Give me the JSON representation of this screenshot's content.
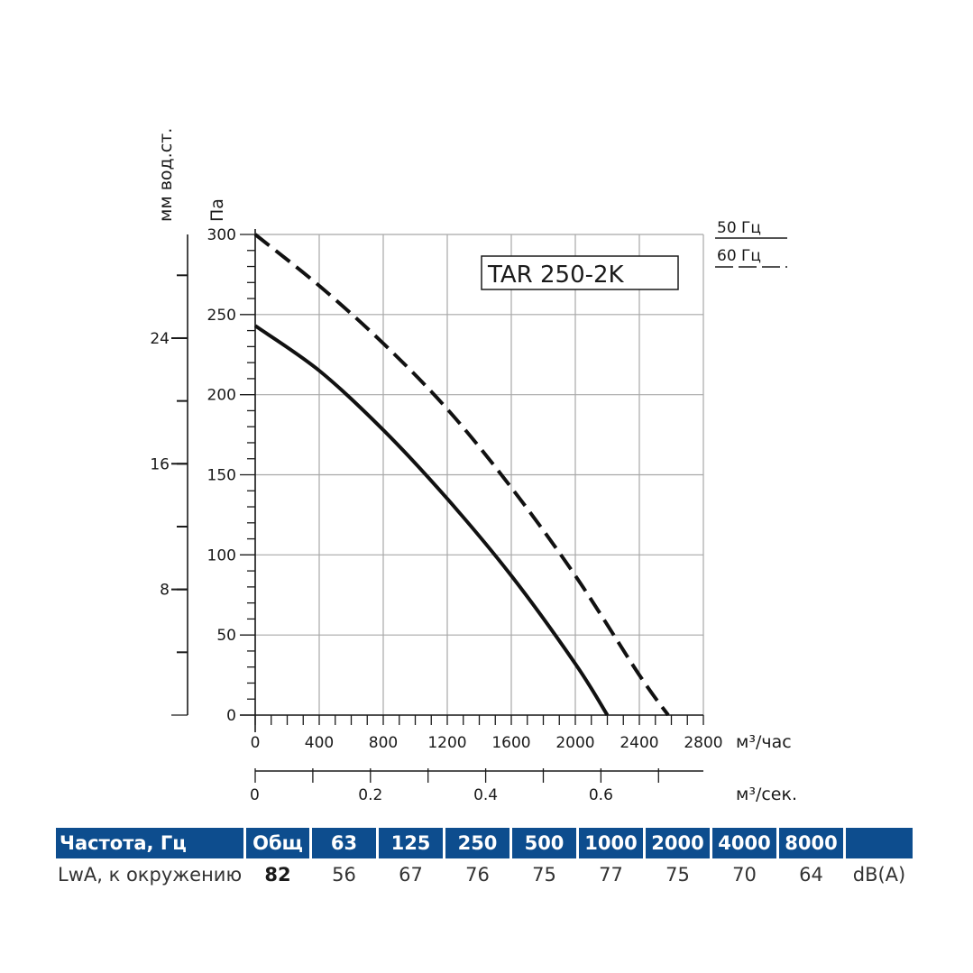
{
  "chart_data": {
    "type": "line",
    "model": "TAR 250-2K",
    "xlabel": "м³/час",
    "xlabel_secondary": "м³/сек.",
    "ylabel": "Па",
    "ylabel_secondary": "мм вод.ст.",
    "xlim": [
      0,
      2800
    ],
    "ylim": [
      0,
      300
    ],
    "x_ticks": [
      "0",
      "400",
      "800",
      "1200",
      "1600",
      "2000",
      "2400",
      "2800"
    ],
    "y_ticks": [
      "0",
      "50",
      "100",
      "150",
      "200",
      "250",
      "300"
    ],
    "secondary_x_ticks": [
      "0",
      "0.2",
      "0.4",
      "0.6"
    ],
    "secondary_x_max": 0.7778,
    "secondary_y_ticks": [
      "8",
      "16",
      "24"
    ],
    "secondary_y_max": 30.6,
    "grid": true,
    "legend": "top-right",
    "series": [
      {
        "name": "50 Гц",
        "style": "solid",
        "x": [
          0,
          400,
          800,
          1200,
          1600,
          2000,
          2200
        ],
        "y": [
          243,
          215,
          178,
          135,
          87,
          32,
          0
        ]
      },
      {
        "name": "60 Гц",
        "style": "dashed",
        "x": [
          0,
          400,
          800,
          1200,
          1600,
          2000,
          2400,
          2580
        ],
        "y": [
          300,
          268,
          232,
          191,
          142,
          87,
          25,
          0
        ]
      }
    ]
  },
  "sound_table": {
    "header": [
      "Частота, Гц",
      "Общ",
      "63",
      "125",
      "250",
      "500",
      "1000",
      "2000",
      "4000",
      "8000",
      ""
    ],
    "row": {
      "label": "LwA, к окружению",
      "total": "82",
      "values": [
        "56",
        "67",
        "76",
        "75",
        "77",
        "75",
        "70",
        "64"
      ],
      "unit": "dB(A)"
    }
  }
}
